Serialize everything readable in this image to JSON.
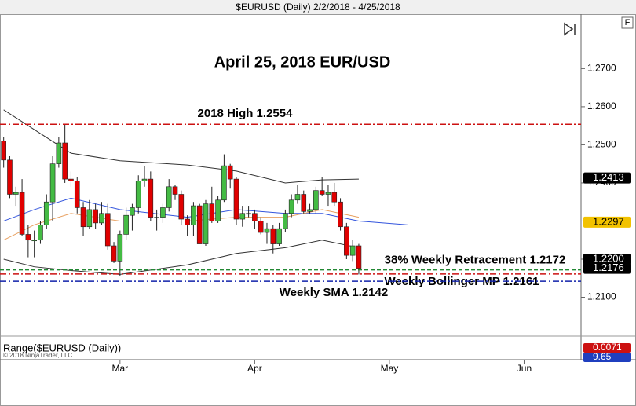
{
  "chart_data": {
    "type": "candlestick",
    "title": "$EURUSD (Daily)  2/2/2018 - 4/25/2018",
    "annotation_title": "April 25, 2018 EUR/USD",
    "copyright": "© 2018 NinjaTrader, LLC",
    "x": [
      0,
      1,
      2,
      3,
      4,
      5,
      6,
      7,
      8,
      9,
      10,
      11,
      12,
      13,
      14,
      15,
      16,
      17,
      18,
      19,
      20,
      21,
      22,
      23,
      24,
      25,
      26,
      27,
      28,
      29,
      30,
      31,
      32,
      33,
      34,
      35,
      36,
      37,
      38,
      39,
      40,
      41,
      42,
      43,
      44,
      45,
      46,
      47,
      48,
      49,
      50,
      51,
      52,
      53,
      54,
      55,
      56,
      57,
      58
    ],
    "open": [
      1.251,
      1.246,
      1.237,
      1.2375,
      1.2265,
      1.225,
      1.225,
      1.229,
      1.235,
      1.245,
      1.2505,
      1.241,
      1.2405,
      1.2335,
      1.2285,
      1.233,
      1.2295,
      1.232,
      1.2235,
      1.2195,
      1.2265,
      1.2315,
      1.2335,
      1.2405,
      1.241,
      1.231,
      1.231,
      1.2335,
      1.239,
      1.237,
      1.2305,
      1.229,
      1.234,
      1.224,
      1.2345,
      1.23,
      1.2355,
      1.2445,
      1.241,
      1.2305,
      1.232,
      1.232,
      1.23,
      1.227,
      1.228,
      1.224,
      1.228,
      1.232,
      1.2355,
      1.237,
      1.2325,
      1.233,
      1.238,
      1.237,
      1.2375,
      1.235,
      1.2285,
      1.221,
      1.2235
    ],
    "high": [
      1.252,
      1.247,
      1.239,
      1.241,
      1.229,
      1.2275,
      1.23,
      1.237,
      1.247,
      1.252,
      1.2555,
      1.243,
      1.2415,
      1.235,
      1.2355,
      1.2345,
      1.235,
      1.2345,
      1.2245,
      1.2275,
      1.2335,
      1.2345,
      1.242,
      1.2445,
      1.243,
      1.233,
      1.2345,
      1.241,
      1.2395,
      1.238,
      1.2315,
      1.235,
      1.2345,
      1.2355,
      1.239,
      1.2365,
      1.2475,
      1.245,
      1.2415,
      1.234,
      1.234,
      1.233,
      1.231,
      1.2295,
      1.229,
      1.2295,
      1.233,
      1.237,
      1.2395,
      1.238,
      1.2345,
      1.239,
      1.2415,
      1.2395,
      1.24,
      1.236,
      1.2295,
      1.225,
      1.224
    ],
    "low": [
      1.244,
      1.236,
      1.234,
      1.226,
      1.2205,
      1.2205,
      1.224,
      1.228,
      1.23,
      1.244,
      1.24,
      1.239,
      1.232,
      1.226,
      1.228,
      1.228,
      1.229,
      1.2225,
      1.219,
      1.2155,
      1.225,
      1.2275,
      1.232,
      1.239,
      1.23,
      1.2275,
      1.2295,
      1.2325,
      1.2355,
      1.229,
      1.226,
      1.226,
      1.224,
      1.2235,
      1.2295,
      1.2295,
      1.235,
      1.2385,
      1.229,
      1.2285,
      1.231,
      1.228,
      1.2265,
      1.224,
      1.2215,
      1.2235,
      1.227,
      1.231,
      1.2345,
      1.232,
      1.232,
      1.232,
      1.2365,
      1.234,
      1.234,
      1.2275,
      1.22,
      1.2195,
      1.216
    ],
    "close": [
      1.246,
      1.237,
      1.2375,
      1.2265,
      1.225,
      1.225,
      1.229,
      1.235,
      1.245,
      1.2505,
      1.241,
      1.2405,
      1.2335,
      1.2285,
      1.233,
      1.2295,
      1.232,
      1.2235,
      1.2195,
      1.2265,
      1.2315,
      1.2335,
      1.2405,
      1.241,
      1.231,
      1.231,
      1.2335,
      1.239,
      1.237,
      1.2305,
      1.229,
      1.234,
      1.224,
      1.2345,
      1.23,
      1.2355,
      1.2445,
      1.241,
      1.2305,
      1.232,
      1.232,
      1.23,
      1.227,
      1.228,
      1.224,
      1.228,
      1.232,
      1.2355,
      1.237,
      1.2325,
      1.233,
      1.238,
      1.237,
      1.2375,
      1.235,
      1.2285,
      1.221,
      1.2235,
      1.2176
    ],
    "up_color": "#44bb44",
    "down_color": "#e00000",
    "overlays": [
      {
        "color": "#333333",
        "x": [
          0,
          5,
          11,
          19,
          30,
          38,
          46,
          52,
          58
        ],
        "values": [
          1.2592,
          1.254,
          1.2478,
          1.2458,
          1.2447,
          1.2431,
          1.24,
          1.2408,
          1.241
        ]
      },
      {
        "color": "#333333",
        "x": [
          0,
          5,
          11,
          19,
          30,
          38,
          46,
          52,
          58
        ],
        "values": [
          1.22,
          1.218,
          1.217,
          1.216,
          1.2185,
          1.2215,
          1.223,
          1.225,
          1.223
        ]
      },
      {
        "color": "#3355dd",
        "x": [
          0,
          5,
          11,
          19,
          30,
          38,
          46,
          52,
          58,
          66
        ],
        "values": [
          1.23,
          1.233,
          1.236,
          1.233,
          1.231,
          1.233,
          1.232,
          1.232,
          1.23,
          1.229
        ]
      },
      {
        "color": "#e8a060",
        "x": [
          0,
          5,
          11,
          19,
          30,
          38,
          46,
          52,
          58
        ],
        "values": [
          1.225,
          1.229,
          1.232,
          1.23,
          1.23,
          1.231,
          1.231,
          1.233,
          1.231
        ]
      }
    ],
    "levels": [
      {
        "label": "2018 High 1.2554",
        "value": 1.2554,
        "color": "#cc1111",
        "dash": "8 3 2 3"
      },
      {
        "label": "38% Weekly Retracement 1.2172",
        "value": 1.2172,
        "color": "#228833",
        "dash": "5 3"
      },
      {
        "label": "Weekly Bollinger MP 1.2161",
        "value": 1.2161,
        "color": "#cc1111",
        "dash": "8 3 2 3"
      },
      {
        "label": "Weekly SMA 1.2142",
        "value": 1.2142,
        "color": "#1122aa",
        "dash": "8 3 2 3"
      }
    ],
    "price_markers": [
      {
        "value": 1.2413,
        "label": "1.2413",
        "color": "#000000"
      },
      {
        "value": 1.2297,
        "label": "1.2297",
        "color": "#f2c200"
      },
      {
        "value": 1.22,
        "label": "1.2200",
        "color": "#000000"
      },
      {
        "value": 1.2176,
        "label": "1.2176",
        "color": "#000000"
      }
    ],
    "ylim": [
      1.1998,
      1.2843
    ],
    "yticks": [
      {
        "value": 1.21,
        "label": "1.2100"
      },
      {
        "value": 1.22,
        "label": "1.2200"
      },
      {
        "value": 1.23,
        "label": "1.2300"
      },
      {
        "value": 1.24,
        "label": "1.2400"
      },
      {
        "value": 1.25,
        "label": "1.2500"
      },
      {
        "value": 1.26,
        "label": "1.2600"
      },
      {
        "value": 1.27,
        "label": "1.2700"
      }
    ],
    "xlim": [
      -0.6,
      94.3
    ],
    "xticks": [
      {
        "value": 19,
        "label": "Mar"
      },
      {
        "value": 41,
        "label": "Apr"
      },
      {
        "value": 63,
        "label": "May"
      },
      {
        "value": 85,
        "label": "Jun"
      }
    ],
    "lower_panel": {
      "title": "Range($EURUSD (Daily))",
      "markers": [
        {
          "label": "0.0071",
          "color": "#cc1111"
        },
        {
          "label": "9.65",
          "color": "#1f3fbf"
        }
      ]
    }
  }
}
